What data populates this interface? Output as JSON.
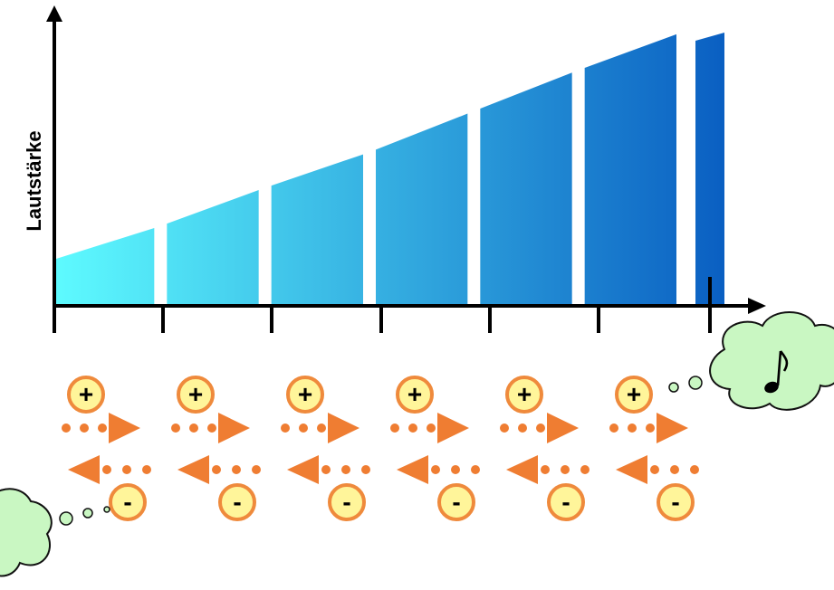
{
  "y_axis_label": "Lautstärke",
  "volume_levels": [
    0.17,
    0.29,
    0.43,
    0.56,
    0.71,
    0.86,
    1.0
  ],
  "plus_symbol": "+",
  "minus_symbol": "-",
  "segment_count": 6,
  "colors": {
    "gradient_start": "#5efbff",
    "gradient_end": "#0a5fc2",
    "axis": "#000000",
    "badge_fill": "#fff59a",
    "badge_stroke": "#ef8a3c",
    "arrow": "#ef7d32",
    "cloud_fill": "#c9f7c2",
    "cloud_stroke": "#111111"
  },
  "icons": {
    "music": "music-note-icon",
    "bubble": "thought-bubble-icon"
  }
}
